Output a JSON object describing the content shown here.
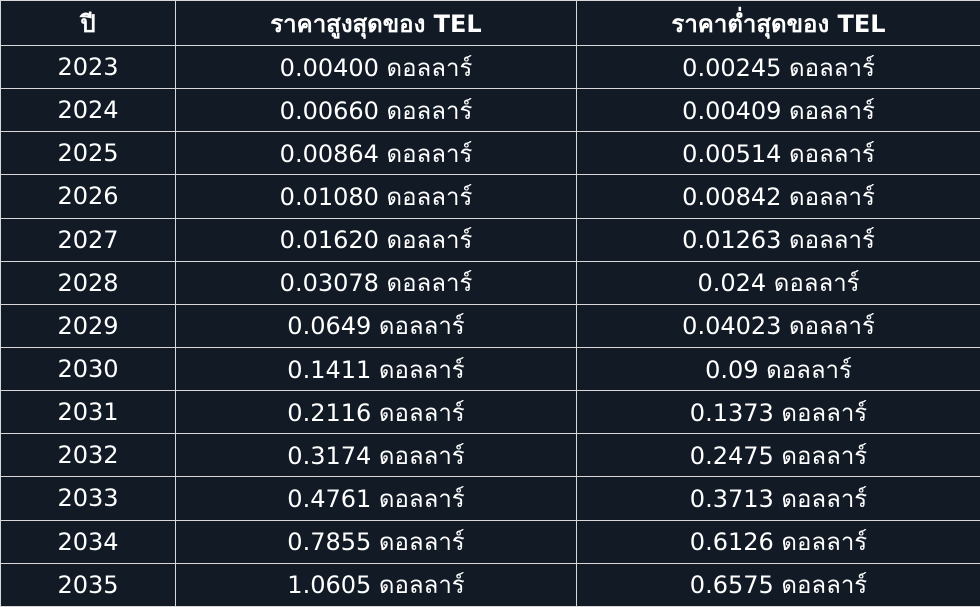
{
  "table": {
    "header": [
      "ปี",
      "ราคาสูงสุดของ TEL",
      "ราคาต่ำสุดของ TEL"
    ],
    "rows": [
      [
        "2023",
        "0.00400 ดอลลาร์",
        "0.00245 ดอลลาร์"
      ],
      [
        "2024",
        "0.00660 ดอลลาร์",
        "0.00409 ดอลลาร์"
      ],
      [
        "2025",
        "0.00864 ดอลลาร์",
        "0.00514 ดอลลาร์"
      ],
      [
        "2026",
        "0.01080 ดอลลาร์",
        "0.00842 ดอลลาร์"
      ],
      [
        "2027",
        "0.01620 ดอลลาร์",
        "0.01263 ดอลลาร์"
      ],
      [
        "2028",
        "0.03078 ดอลลาร์",
        "0.024 ดอลลาร์"
      ],
      [
        "2029",
        "0.0649 ดอลลาร์",
        "0.04023 ดอลลาร์"
      ],
      [
        "2030",
        "0.1411 ดอลลาร์",
        "0.09 ดอลลาร์"
      ],
      [
        "2031",
        "0.2116 ดอลลาร์",
        "0.1373 ดอลลาร์"
      ],
      [
        "2032",
        "0.3174 ดอลลาร์",
        "0.2475 ดอลลาร์"
      ],
      [
        "2033",
        "0.4761 ดอลลาร์",
        "0.3713 ดอลลาร์"
      ],
      [
        "2034",
        "0.7855 ดอลลาร์",
        "0.6126 ดอลลาร์"
      ],
      [
        "2035",
        "1.0605 ดอลลาร์",
        "0.6575 ดอลลาร์"
      ]
    ]
  }
}
